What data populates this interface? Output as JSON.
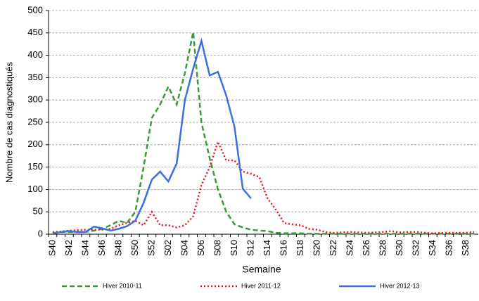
{
  "chart_data": {
    "type": "line",
    "x_label": "Semaine",
    "y_label": "Nombre de cas diagnostiqués",
    "categories": [
      "S40",
      null,
      "S42",
      null,
      "S44",
      null,
      "S46",
      null,
      "S48",
      null,
      "S50",
      null,
      "S52",
      null,
      "S02",
      null,
      "S04",
      null,
      "S06",
      null,
      "S08",
      null,
      "S10",
      null,
      "S12",
      null,
      "S14",
      null,
      "S16",
      null,
      "S18",
      null,
      "S20",
      null,
      "S22",
      null,
      "S24",
      null,
      "S26",
      null,
      "S28",
      null,
      "S30",
      null,
      "S32",
      null,
      "S34",
      null,
      "S36",
      null,
      "S38",
      null
    ],
    "series": [
      {
        "name": "Hiver 2010-11",
        "color": "#3a9a3a",
        "style": "dashed",
        "values": [
          2,
          5,
          5,
          5,
          5,
          8,
          12,
          20,
          30,
          25,
          50,
          150,
          260,
          290,
          330,
          290,
          360,
          452,
          250,
          170,
          100,
          50,
          22,
          15,
          10,
          8,
          7,
          3,
          2,
          2,
          2,
          1,
          1,
          1,
          1,
          1,
          1,
          1,
          1,
          1,
          1,
          1,
          1,
          1,
          1,
          1,
          1,
          1,
          1,
          1,
          1,
          1
        ]
      },
      {
        "name": "Hiver 2011-12",
        "color": "#e8161b",
        "style": "dotted",
        "values": [
          5,
          6,
          8,
          9,
          10,
          10,
          10,
          12,
          20,
          25,
          30,
          20,
          50,
          20,
          20,
          15,
          20,
          40,
          110,
          150,
          207,
          165,
          165,
          140,
          135,
          128,
          80,
          55,
          25,
          22,
          20,
          12,
          10,
          5,
          3,
          4,
          5,
          4,
          3,
          4,
          5,
          7,
          4,
          5,
          5,
          3,
          2,
          3,
          3,
          3,
          3,
          5
        ]
      },
      {
        "name": "Hiver 2012-13",
        "color": "#3a6fe0",
        "style": "solid",
        "values": [
          2,
          5,
          7,
          5,
          5,
          17,
          13,
          8,
          12,
          18,
          30,
          70,
          122,
          140,
          118,
          158,
          300,
          370,
          432,
          355,
          363,
          310,
          240,
          102,
          80,
          null,
          null,
          null,
          null,
          null,
          null,
          null,
          null,
          null,
          null,
          null,
          null,
          null,
          null,
          null,
          null,
          null,
          null,
          null,
          null,
          null,
          null,
          null,
          null,
          null,
          null,
          null
        ]
      }
    ],
    "ylim": [
      0,
      500
    ],
    "yticks": [
      0,
      50,
      100,
      150,
      200,
      250,
      300,
      350,
      400,
      450,
      500
    ],
    "grid": true
  }
}
